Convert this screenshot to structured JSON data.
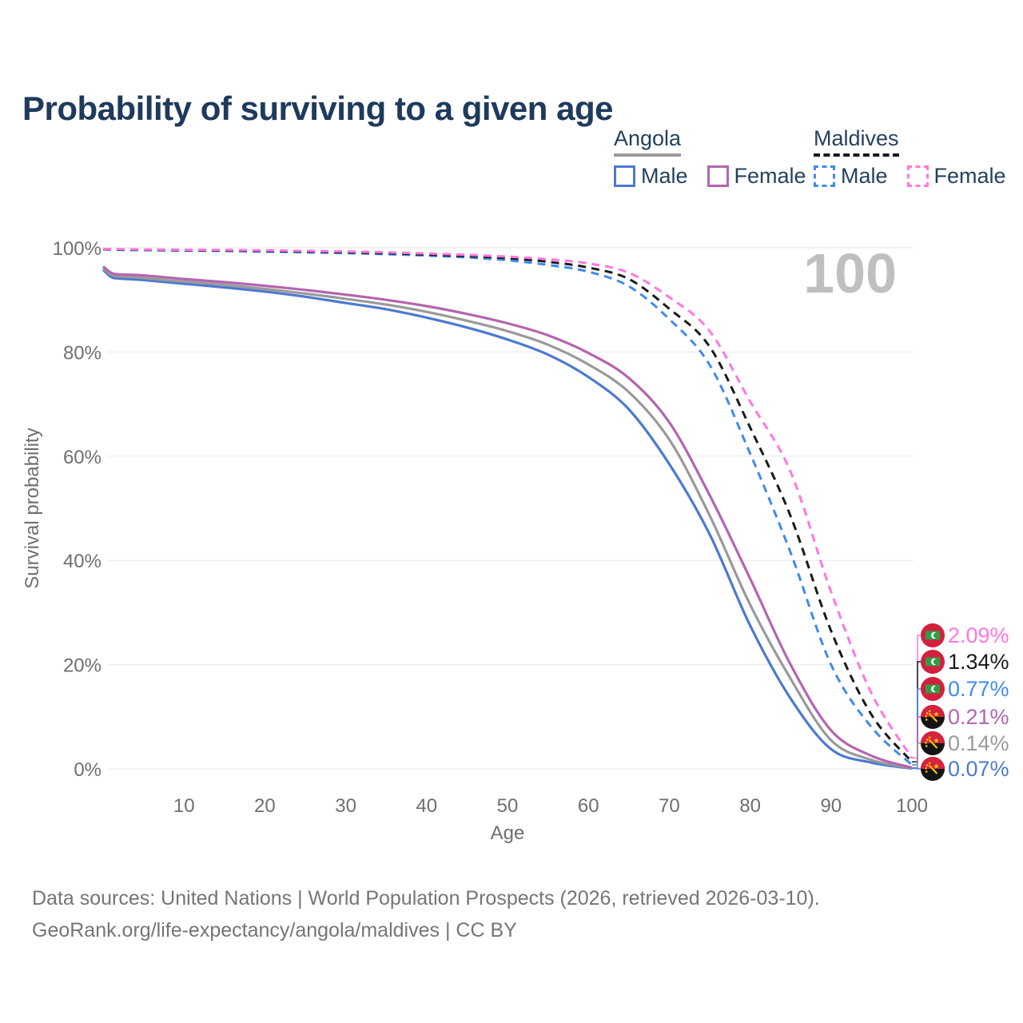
{
  "title": "Probability of surviving to a given age",
  "legend": {
    "groups": [
      {
        "label": "Angola",
        "line_style": "solid",
        "line_color": "#9a9a9a",
        "items": [
          {
            "label": "Male",
            "color": "#4c79d1",
            "dashed": false
          },
          {
            "label": "Female",
            "color": "#b365af",
            "dashed": false
          }
        ]
      },
      {
        "label": "Maldives",
        "line_style": "dashed",
        "line_color": "#1a1a1a",
        "items": [
          {
            "label": "Male",
            "color": "#3e8bf0",
            "dashed": true
          },
          {
            "label": "Female",
            "color": "#ff77e0",
            "dashed": true
          }
        ]
      }
    ]
  },
  "chart_data": {
    "type": "line",
    "title": "Probability of surviving to a given age",
    "xlabel": "Age",
    "ylabel": "Survival probability",
    "xlim": [
      0,
      100
    ],
    "ylim": [
      0,
      100
    ],
    "grid": "horizontal",
    "watermark": "100",
    "x_ticks": [
      10,
      20,
      30,
      40,
      50,
      60,
      70,
      80,
      90,
      100
    ],
    "y_ticks": [
      {
        "pct": 0,
        "label": "0%"
      },
      {
        "pct": 20,
        "label": "20%"
      },
      {
        "pct": 40,
        "label": "40%"
      },
      {
        "pct": 60,
        "label": "60%"
      },
      {
        "pct": 80,
        "label": "80%"
      },
      {
        "pct": 100,
        "label": "100%"
      }
    ],
    "x": [
      0,
      1,
      2,
      5,
      10,
      15,
      20,
      25,
      30,
      35,
      40,
      45,
      50,
      55,
      60,
      65,
      70,
      75,
      80,
      85,
      90,
      95,
      100
    ],
    "series": [
      {
        "name": "Maldives Female",
        "country": "Maldives",
        "sex": "Female",
        "color": "#ff77e0",
        "dashed": true,
        "end_label": "2.09%",
        "flag": "maldives",
        "values": [
          99.8,
          99.75,
          99.72,
          99.67,
          99.62,
          99.57,
          99.5,
          99.4,
          99.28,
          99.12,
          98.9,
          98.65,
          98.3,
          97.8,
          97.0,
          95.2,
          90.5,
          84.0,
          70.5,
          57.0,
          34.0,
          14.5,
          2.09
        ]
      },
      {
        "name": "Maldives Both sexes",
        "country": "Maldives",
        "sex": "Both",
        "color": "#1a1a1a",
        "dashed": true,
        "end_label": "1.34%",
        "flag": "maldives",
        "values": [
          99.75,
          99.7,
          99.66,
          99.6,
          99.54,
          99.47,
          99.38,
          99.27,
          99.13,
          98.95,
          98.7,
          98.4,
          98.0,
          97.3,
          96.2,
          94.0,
          88.3,
          81.0,
          65.5,
          48.5,
          26.5,
          10.4,
          1.34
        ]
      },
      {
        "name": "Maldives Male",
        "country": "Maldives",
        "sex": "Male",
        "color": "#3e8bf0",
        "dashed": true,
        "end_label": "0.77%",
        "flag": "maldives",
        "values": [
          99.7,
          99.64,
          99.6,
          99.54,
          99.47,
          99.38,
          99.27,
          99.13,
          98.97,
          98.77,
          98.5,
          98.15,
          97.6,
          96.7,
          95.4,
          92.6,
          86.3,
          77.5,
          60.5,
          41.5,
          20.0,
          8.0,
          0.77
        ]
      },
      {
        "name": "Angola Female",
        "country": "Angola",
        "sex": "Female",
        "color": "#b365af",
        "dashed": false,
        "end_label": "0.21%",
        "flag": "angola",
        "values": [
          96.4,
          95.2,
          94.9,
          94.7,
          94.0,
          93.4,
          92.7,
          91.9,
          91.0,
          90.0,
          88.8,
          87.3,
          85.5,
          83.2,
          79.8,
          75.0,
          66.5,
          52.5,
          36.5,
          20.0,
          7.4,
          2.5,
          0.21
        ]
      },
      {
        "name": "Angola Both sexes",
        "country": "Angola",
        "sex": "Both",
        "color": "#9a9a9a",
        "dashed": false,
        "end_label": "0.14%",
        "flag": "angola",
        "values": [
          96.1,
          94.8,
          94.5,
          94.2,
          93.5,
          92.9,
          92.1,
          91.2,
          90.2,
          89.1,
          87.7,
          86.0,
          84.0,
          81.4,
          77.6,
          72.3,
          63.2,
          48.6,
          31.5,
          17.3,
          5.5,
          1.7,
          0.14
        ]
      },
      {
        "name": "Angola Male",
        "country": "Angola",
        "sex": "Male",
        "color": "#4c79d1",
        "dashed": false,
        "end_label": "0.07%",
        "flag": "angola",
        "values": [
          95.8,
          94.4,
          94.1,
          93.8,
          93.1,
          92.4,
          91.6,
          90.6,
          89.4,
          88.2,
          86.6,
          84.7,
          82.4,
          79.5,
          75.2,
          69.0,
          58.5,
          45.0,
          27.5,
          13.5,
          3.8,
          1.2,
          0.07
        ]
      }
    ]
  },
  "footer": {
    "line1": "Data sources: United Nations | World Population Prospects (2026, retrieved 2026-03-10).",
    "line2": "GeoRank.org/life-expectancy/angola/maldives | CC BY"
  }
}
